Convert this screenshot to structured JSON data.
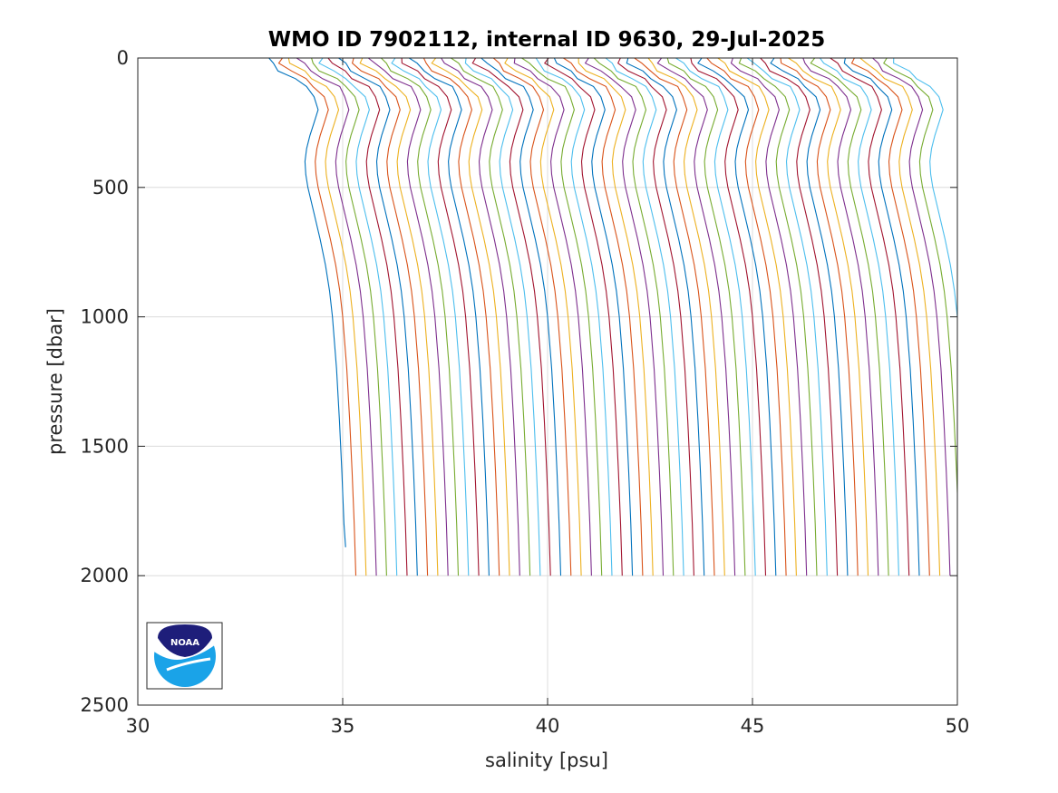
{
  "chart_data": {
    "type": "line",
    "title": "WMO ID 7902112, internal ID 9630, 29-Jul-2025",
    "xlabel": "salinity [psu]",
    "ylabel": "pressure [dbar]",
    "xlim": [
      30,
      50
    ],
    "ylim": [
      0,
      2500
    ],
    "y_reversed": true,
    "grid": true,
    "legend": "none",
    "xticks": [
      "30",
      "35",
      "40",
      "45",
      "50"
    ],
    "yticks": [
      "0",
      "500",
      "1000",
      "1500",
      "2000",
      "2500"
    ],
    "profile_shape": {
      "pressure": [
        0,
        20,
        50,
        80,
        110,
        150,
        200,
        250,
        300,
        350,
        400,
        450,
        500,
        600,
        700,
        800,
        900,
        1000,
        1200,
        1400,
        1600,
        1800,
        2000
      ],
      "salinity_anomaly": [
        -1.0,
        -0.95,
        -0.7,
        -0.4,
        -0.1,
        0.1,
        0.2,
        0.1,
        0.0,
        -0.08,
        -0.12,
        -0.1,
        -0.05,
        0.1,
        0.25,
        0.38,
        0.48,
        0.55,
        0.65,
        0.72,
        0.78,
        0.83,
        0.87
      ]
    },
    "series_count": 62,
    "series_offset_start": 34.2,
    "series_offset_step": 0.25,
    "series_colors": [
      "#0072BD",
      "#D95319",
      "#EDB120",
      "#7E2F8E",
      "#77AC30",
      "#4DBEEE",
      "#A2142F"
    ],
    "profile_bottom_pressure": 2000,
    "first_profile_bottom_pressure": 1890
  },
  "logo": {
    "text": "NOAA",
    "colors": {
      "navy": "#1e1e7a",
      "sky": "#1aa3e8",
      "white": "#ffffff"
    }
  }
}
